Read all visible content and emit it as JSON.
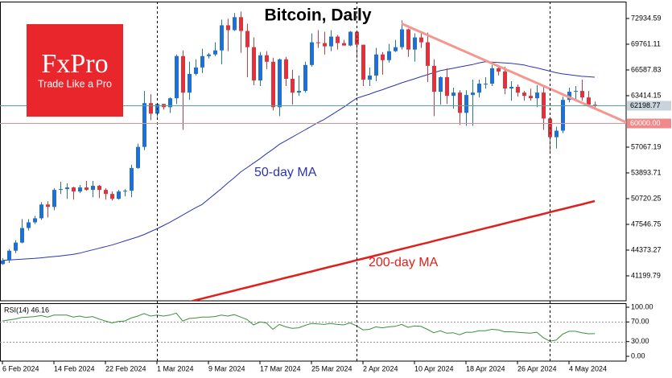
{
  "logo": {
    "name": "FxPro",
    "tagline": "Trade Like a Pro"
  },
  "chart_data": [
    {
      "type": "candlestick",
      "title": "Bitcoin, Daily",
      "x": [
        "2024-02-06",
        "2024-02-07",
        "2024-02-08",
        "2024-02-09",
        "2024-02-10",
        "2024-02-11",
        "2024-02-12",
        "2024-02-13",
        "2024-02-14",
        "2024-02-15",
        "2024-02-16",
        "2024-02-17",
        "2024-02-18",
        "2024-02-19",
        "2024-02-20",
        "2024-02-21",
        "2024-02-22",
        "2024-02-23",
        "2024-02-24",
        "2024-02-25",
        "2024-02-26",
        "2024-02-27",
        "2024-02-28",
        "2024-02-29",
        "2024-03-01",
        "2024-03-02",
        "2024-03-03",
        "2024-03-04",
        "2024-03-05",
        "2024-03-06",
        "2024-03-07",
        "2024-03-08",
        "2024-03-09",
        "2024-03-10",
        "2024-03-11",
        "2024-03-12",
        "2024-03-13",
        "2024-03-14",
        "2024-03-15",
        "2024-03-16",
        "2024-03-17",
        "2024-03-18",
        "2024-03-19",
        "2024-03-20",
        "2024-03-21",
        "2024-03-22",
        "2024-03-23",
        "2024-03-24",
        "2024-03-25",
        "2024-03-26",
        "2024-03-27",
        "2024-03-28",
        "2024-03-29",
        "2024-03-30",
        "2024-03-31",
        "2024-04-01",
        "2024-04-02",
        "2024-04-03",
        "2024-04-04",
        "2024-04-05",
        "2024-04-06",
        "2024-04-07",
        "2024-04-08",
        "2024-04-09",
        "2024-04-10",
        "2024-04-11",
        "2024-04-12",
        "2024-04-13",
        "2024-04-14",
        "2024-04-15",
        "2024-04-16",
        "2024-04-17",
        "2024-04-18",
        "2024-04-19",
        "2024-04-20",
        "2024-04-21",
        "2024-04-22",
        "2024-04-23",
        "2024-04-24",
        "2024-04-25",
        "2024-04-26",
        "2024-04-27",
        "2024-04-28",
        "2024-04-29",
        "2024-04-30",
        "2024-05-01",
        "2024-05-02",
        "2024-05-03",
        "2024-05-04",
        "2024-05-05",
        "2024-05-06",
        "2024-05-07",
        "2024-05-08"
      ],
      "open": [
        42650,
        43100,
        44300,
        45300,
        47100,
        47800,
        48300,
        50000,
        49700,
        51800,
        51900,
        52100,
        51600,
        52100,
        51800,
        52300,
        51800,
        51300,
        50700,
        51600,
        51700,
        54500,
        57100,
        62500,
        61200,
        62400,
        62000,
        63100,
        68300,
        63800,
        66100,
        66900,
        68300,
        68500,
        69000,
        72100,
        71500,
        73100,
        71400,
        69400,
        65300,
        68400,
        67600,
        62000,
        67900,
        65500,
        63800,
        64000,
        67200,
        70000,
        69900,
        69500,
        70700,
        69900,
        69600,
        71300,
        69700,
        65400,
        65900,
        68500,
        67800,
        68900,
        69400,
        71600,
        69100,
        70600,
        70000,
        67100,
        63900,
        65700,
        63400,
        63800,
        61300,
        63500,
        63800,
        64900,
        64900,
        66800,
        66400,
        64300,
        64500,
        63800,
        63400,
        63100,
        63800,
        60600,
        58300,
        59100,
        62900,
        63900,
        64000,
        63200,
        62300
      ],
      "high": [
        43400,
        44500,
        45600,
        48200,
        48200,
        48600,
        50300,
        50400,
        52000,
        52800,
        52600,
        52200,
        52400,
        52900,
        52900,
        52400,
        52000,
        51600,
        51800,
        51900,
        54900,
        57500,
        64000,
        63600,
        62500,
        62400,
        63200,
        68500,
        69000,
        67600,
        67900,
        69200,
        68700,
        70000,
        72800,
        72900,
        73600,
        73800,
        72300,
        70600,
        68800,
        68900,
        68100,
        68000,
        68200,
        66600,
        65900,
        67600,
        71100,
        71500,
        71300,
        71500,
        70900,
        70300,
        71400,
        71300,
        69700,
        66900,
        69300,
        68800,
        69800,
        70300,
        72700,
        71700,
        71100,
        71200,
        71200,
        67900,
        65800,
        66800,
        64400,
        64100,
        64100,
        65400,
        65400,
        65700,
        67200,
        67200,
        67000,
        65200,
        64800,
        64000,
        64300,
        64700,
        64600,
        60800,
        59600,
        63300,
        64400,
        64600,
        65400,
        64000,
        62700
      ],
      "low": [
        42550,
        42800,
        44000,
        45200,
        46800,
        47600,
        48100,
        48400,
        49300,
        51300,
        50700,
        50600,
        51400,
        51700,
        50900,
        50800,
        50600,
        50500,
        50600,
        51000,
        50900,
        54400,
        56700,
        60400,
        60800,
        61700,
        61300,
        62400,
        59200,
        62900,
        65900,
        66200,
        68000,
        68300,
        67300,
        68900,
        71400,
        68700,
        65700,
        64700,
        64600,
        66700,
        61600,
        60900,
        64600,
        62300,
        63400,
        63800,
        67000,
        69300,
        68500,
        68900,
        69100,
        69600,
        69500,
        68000,
        64600,
        64600,
        65200,
        66000,
        67500,
        68800,
        69100,
        68200,
        67600,
        69300,
        65100,
        60900,
        62300,
        62400,
        61800,
        59800,
        59700,
        59700,
        63200,
        64300,
        64600,
        65900,
        63600,
        62800,
        63300,
        62800,
        62800,
        62000,
        59200,
        56600,
        56900,
        58800,
        62600,
        62900,
        62800,
        62100,
        61900
      ],
      "close": [
        43100,
        44300,
        45300,
        47100,
        47800,
        48300,
        50000,
        49700,
        51800,
        51900,
        52100,
        51600,
        52100,
        51800,
        52300,
        51800,
        51300,
        50700,
        51600,
        51700,
        54500,
        57100,
        62500,
        61200,
        62400,
        62000,
        63100,
        68300,
        63800,
        66100,
        66900,
        68300,
        68500,
        69000,
        72100,
        71500,
        73100,
        71400,
        69400,
        65300,
        68400,
        67600,
        62000,
        67900,
        65500,
        63800,
        64000,
        67200,
        70000,
        69900,
        69500,
        70700,
        69900,
        69600,
        71300,
        69700,
        65400,
        65900,
        68500,
        67800,
        68900,
        69400,
        71600,
        69100,
        70600,
        70000,
        67100,
        63900,
        65700,
        63400,
        63800,
        61300,
        63500,
        63800,
        64900,
        64900,
        66800,
        66400,
        64300,
        64500,
        63800,
        63400,
        63100,
        63800,
        60600,
        58300,
        59100,
        62900,
        63900,
        64000,
        63200,
        62300,
        62198.77
      ],
      "up_color": "#1f6fd6",
      "down_color": "#e2313b",
      "series": [
        {
          "name": "50-day MA",
          "color": "#2a35b0",
          "values": [
            43100,
            43150,
            43200,
            43250,
            43300,
            43350,
            43420,
            43500,
            43580,
            43660,
            43750,
            43850,
            44000,
            44200,
            44400,
            44600,
            44800,
            45000,
            45250,
            45500,
            45750,
            46000,
            46300,
            46650,
            47000,
            47400,
            47800,
            48250,
            48700,
            49150,
            49600,
            50000,
            50650,
            51300,
            51950,
            52650,
            53300,
            54000,
            54550,
            55100,
            55650,
            56250,
            56800,
            57400,
            57850,
            58300,
            58750,
            59200,
            59650,
            60100,
            60500,
            61000,
            61500,
            62000,
            62550,
            63100,
            63350,
            63600,
            63900,
            64150,
            64450,
            64700,
            65000,
            65250,
            65500,
            65750,
            66000,
            66250,
            66500,
            66650,
            66800,
            66950,
            67100,
            67250,
            67450,
            67600,
            67550,
            67500,
            67450,
            67400,
            67300,
            67200,
            67000,
            66850,
            66650,
            66450,
            66250,
            66100,
            66000,
            65900,
            65800,
            65750,
            65700
          ]
        },
        {
          "name": "200-day MA",
          "color": "#e0201c",
          "values": [
            null,
            null,
            null,
            null,
            null,
            null,
            null,
            null,
            null,
            null,
            null,
            null,
            null,
            null,
            null,
            null,
            null,
            null,
            null,
            null,
            null,
            null,
            null,
            null,
            null,
            null,
            null,
            null,
            null,
            38000,
            38200,
            38390,
            38590,
            38790,
            38990,
            39180,
            39380,
            39580,
            39770,
            39970,
            40170,
            40370,
            40560,
            40760,
            40960,
            41150,
            41350,
            41550,
            41740,
            41940,
            42140,
            42340,
            42530,
            42730,
            42930,
            43130,
            43320,
            43520,
            43720,
            43910,
            44110,
            44310,
            44510,
            44700,
            44900,
            45100,
            45290,
            45490,
            45690,
            45890,
            46080,
            46280,
            46480,
            46670,
            46870,
            47070,
            47260,
            47460,
            47660,
            47860,
            48050,
            48250,
            48450,
            48640,
            48840,
            49040,
            49240,
            49430,
            49630,
            49830,
            50020,
            50220,
            50420
          ]
        }
      ],
      "trendline": {
        "color": "#f4978e",
        "x": [
          "2024-04-08",
          "2024-05-13"
        ],
        "values": [
          72300,
          60100
        ]
      },
      "price_line": {
        "value": 62198.77,
        "label": "62198.77",
        "color": "#4fa3b3"
      },
      "levels": [
        {
          "value": 60000,
          "label": "60000.00",
          "color": "#f08a8a"
        }
      ],
      "period_separators": [
        "2024-03-01",
        "2024-04-01",
        "2024-05-01"
      ],
      "ylim": [
        38125.5,
        75017.2
      ],
      "yticks": [
        72934.59,
        69761.11,
        66587.83,
        63414.15,
        57067.19,
        53893.71,
        50720.25,
        47546.75,
        44373.27,
        41199.79
      ],
      "xticks": [
        {
          "value": "2024-02-06",
          "label": "6 Feb 2024"
        },
        {
          "value": "2024-02-14",
          "label": "14 Feb 2024"
        },
        {
          "value": "2024-02-22",
          "label": "22 Feb 2024"
        },
        {
          "value": "2024-03-01",
          "label": "1 Mar 2024"
        },
        {
          "value": "2024-03-09",
          "label": "9 Mar 2024"
        },
        {
          "value": "2024-03-17",
          "label": "17 Mar 2024"
        },
        {
          "value": "2024-03-25",
          "label": "25 Mar 2024"
        },
        {
          "value": "2024-04-02",
          "label": "2 Apr 2024"
        },
        {
          "value": "2024-04-10",
          "label": "10 Apr 2024"
        },
        {
          "value": "2024-04-18",
          "label": "18 Apr 2024"
        },
        {
          "value": "2024-04-26",
          "label": "26 Apr 2024"
        },
        {
          "value": "2024-05-04",
          "label": "4 May 2024"
        }
      ]
    },
    {
      "type": "line",
      "title": "RSI(14) 46.16",
      "series": [
        {
          "color": "#3d8f3d",
          "values": [
            72,
            74,
            76,
            79,
            80,
            81,
            83,
            80,
            84,
            84,
            84,
            80,
            82,
            79,
            81,
            76,
            72,
            68,
            71,
            72,
            78,
            82,
            87,
            82,
            84,
            82,
            84,
            88,
            72,
            77,
            78,
            80,
            80,
            81,
            84,
            82,
            85,
            80,
            75,
            64,
            70,
            68,
            55,
            65,
            60,
            57,
            58,
            63,
            67,
            66,
            65,
            67,
            65,
            64,
            68,
            62,
            54,
            55,
            60,
            58,
            60,
            61,
            65,
            59,
            62,
            61,
            55,
            48,
            52,
            47,
            48,
            44,
            49,
            49,
            52,
            52,
            55,
            54,
            50,
            50,
            49,
            48,
            47,
            49,
            38,
            31,
            33,
            45,
            51,
            51,
            48,
            46,
            46.16
          ]
        }
      ],
      "ylim": [
        -9.8,
        108.2
      ],
      "yticks": [
        {
          "value": 100,
          "label": "100.00"
        },
        {
          "value": 70,
          "label": "70.00"
        },
        {
          "value": 30,
          "label": "30.00"
        },
        {
          "value": 0,
          "label": "0.00"
        }
      ],
      "levels": [
        70,
        30
      ]
    }
  ]
}
